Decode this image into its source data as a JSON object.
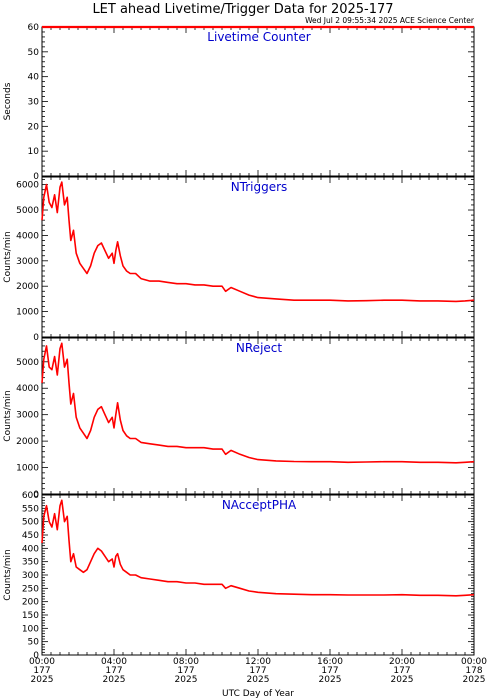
{
  "header": {
    "title": "LET ahead Livetime/Trigger Data for 2025-177",
    "timestamp": "Wed Jul  2 09:55:34 2025 ACE Science Center"
  },
  "colors": {
    "data": "#ff0000",
    "panel_title": "#0000cc",
    "axes": "#000000",
    "background": "#ffffff"
  },
  "chart_data": [
    {
      "type": "line",
      "title": "Livetime Counter",
      "ylabel": "Seconds",
      "xlabel": "UTC Day of Year",
      "ylim": [
        0,
        60
      ],
      "yticks": [
        0,
        10,
        20,
        30,
        40,
        50,
        60
      ],
      "x_hours": [
        0,
        24
      ],
      "series": [
        {
          "x": [
            0,
            4,
            8,
            12,
            16,
            20,
            24
          ],
          "values": [
            60,
            60,
            60,
            60,
            60,
            60,
            60
          ]
        }
      ]
    },
    {
      "type": "line",
      "title": "NTriggers",
      "ylabel": "Counts/min",
      "xlabel": "UTC Day of Year",
      "ylim": [
        0,
        6300
      ],
      "yticks": [
        0,
        1000,
        2000,
        3000,
        4000,
        5000,
        6000
      ],
      "x_hours": [
        0,
        24
      ],
      "series": [
        {
          "x": [
            0,
            0.1,
            0.25,
            0.4,
            0.55,
            0.7,
            0.85,
            1.0,
            1.1,
            1.25,
            1.4,
            1.5,
            1.6,
            1.75,
            1.9,
            2.1,
            2.3,
            2.5,
            2.7,
            2.9,
            3.1,
            3.3,
            3.5,
            3.7,
            3.9,
            4.0,
            4.1,
            4.2,
            4.35,
            4.5,
            4.7,
            4.9,
            5.2,
            5.5,
            6.0,
            6.5,
            7.0,
            7.5,
            8.0,
            8.5,
            9.0,
            9.5,
            10.0,
            10.2,
            10.5,
            11.0,
            11.5,
            12.0,
            13.0,
            14.0,
            15.0,
            16.0,
            17.0,
            18.0,
            19.0,
            20.0,
            21.0,
            22.0,
            23.0,
            23.5,
            24.0
          ],
          "values": [
            4600,
            5500,
            6000,
            5300,
            5100,
            5600,
            4900,
            5900,
            6100,
            5200,
            5500,
            4600,
            3800,
            4200,
            3300,
            2900,
            2700,
            2500,
            2800,
            3300,
            3600,
            3700,
            3400,
            3100,
            3300,
            2900,
            3400,
            3750,
            3200,
            2800,
            2600,
            2500,
            2500,
            2300,
            2200,
            2200,
            2150,
            2100,
            2100,
            2050,
            2050,
            2000,
            2000,
            1800,
            1950,
            1800,
            1650,
            1550,
            1500,
            1450,
            1450,
            1450,
            1420,
            1430,
            1450,
            1450,
            1420,
            1420,
            1400,
            1420,
            1450
          ]
        }
      ]
    },
    {
      "type": "line",
      "title": "NReject",
      "ylabel": "Counts/min",
      "xlabel": "UTC Day of Year",
      "ylim": [
        0,
        5900
      ],
      "yticks": [
        0,
        1000,
        2000,
        3000,
        4000,
        5000
      ],
      "x_hours": [
        0,
        24
      ],
      "series": [
        {
          "x": [
            0,
            0.1,
            0.25,
            0.4,
            0.55,
            0.7,
            0.85,
            1.0,
            1.1,
            1.25,
            1.4,
            1.5,
            1.6,
            1.75,
            1.9,
            2.1,
            2.3,
            2.5,
            2.7,
            2.9,
            3.1,
            3.3,
            3.5,
            3.7,
            3.9,
            4.0,
            4.1,
            4.2,
            4.35,
            4.5,
            4.7,
            4.9,
            5.2,
            5.5,
            6.0,
            6.5,
            7.0,
            7.5,
            8.0,
            8.5,
            9.0,
            9.5,
            10.0,
            10.2,
            10.5,
            11.0,
            11.5,
            12.0,
            13.0,
            14.0,
            15.0,
            16.0,
            17.0,
            18.0,
            19.0,
            20.0,
            21.0,
            22.0,
            23.0,
            23.5,
            24.0
          ],
          "values": [
            4200,
            5100,
            5600,
            4800,
            4700,
            5200,
            4500,
            5500,
            5700,
            4800,
            5100,
            4200,
            3400,
            3800,
            2900,
            2500,
            2300,
            2100,
            2400,
            2900,
            3200,
            3300,
            3000,
            2700,
            2900,
            2500,
            3000,
            3450,
            2800,
            2400,
            2200,
            2100,
            2100,
            1950,
            1900,
            1850,
            1800,
            1800,
            1750,
            1750,
            1750,
            1700,
            1700,
            1500,
            1650,
            1500,
            1380,
            1300,
            1250,
            1230,
            1220,
            1220,
            1200,
            1210,
            1220,
            1220,
            1200,
            1200,
            1180,
            1200,
            1220
          ]
        }
      ]
    },
    {
      "type": "line",
      "title": "NAcceptPHA",
      "ylabel": "Counts/min",
      "xlabel": "UTC Day of Year",
      "ylim": [
        0,
        600
      ],
      "yticks": [
        0,
        50,
        100,
        150,
        200,
        250,
        300,
        350,
        400,
        450,
        500,
        550,
        600
      ],
      "x_hours": [
        0,
        24
      ],
      "series": [
        {
          "x": [
            0,
            0.1,
            0.25,
            0.4,
            0.55,
            0.7,
            0.85,
            1.0,
            1.1,
            1.25,
            1.4,
            1.5,
            1.6,
            1.75,
            1.9,
            2.1,
            2.3,
            2.5,
            2.7,
            2.9,
            3.1,
            3.3,
            3.5,
            3.7,
            3.9,
            4.0,
            4.1,
            4.2,
            4.35,
            4.5,
            4.7,
            4.9,
            5.2,
            5.5,
            6.0,
            6.5,
            7.0,
            7.5,
            8.0,
            8.5,
            9.0,
            9.5,
            10.0,
            10.2,
            10.5,
            11.0,
            11.5,
            12.0,
            13.0,
            14.0,
            15.0,
            16.0,
            17.0,
            18.0,
            19.0,
            20.0,
            21.0,
            22.0,
            23.0,
            23.5,
            24.0
          ],
          "values": [
            420,
            520,
            560,
            500,
            480,
            530,
            470,
            560,
            580,
            500,
            520,
            430,
            350,
            380,
            330,
            320,
            310,
            320,
            350,
            380,
            400,
            390,
            370,
            350,
            360,
            330,
            370,
            380,
            340,
            320,
            310,
            300,
            300,
            290,
            285,
            280,
            275,
            275,
            270,
            270,
            265,
            265,
            265,
            250,
            260,
            250,
            240,
            235,
            230,
            228,
            226,
            226,
            225,
            225,
            225,
            226,
            224,
            224,
            222,
            224,
            226
          ]
        }
      ]
    }
  ],
  "xaxis": {
    "label": "UTC Day of Year",
    "ticks": [
      {
        "hour": 0,
        "time": "00:00",
        "doy": "177",
        "year": "2025"
      },
      {
        "hour": 4,
        "time": "04:00",
        "doy": "177",
        "year": "2025"
      },
      {
        "hour": 8,
        "time": "08:00",
        "doy": "177",
        "year": "2025"
      },
      {
        "hour": 12,
        "time": "12:00",
        "doy": "177",
        "year": "2025"
      },
      {
        "hour": 16,
        "time": "16:00",
        "doy": "177",
        "year": "2025"
      },
      {
        "hour": 20,
        "time": "20:00",
        "doy": "177",
        "year": "2025"
      },
      {
        "hour": 24,
        "time": "00:00",
        "doy": "178",
        "year": "2025"
      }
    ]
  }
}
